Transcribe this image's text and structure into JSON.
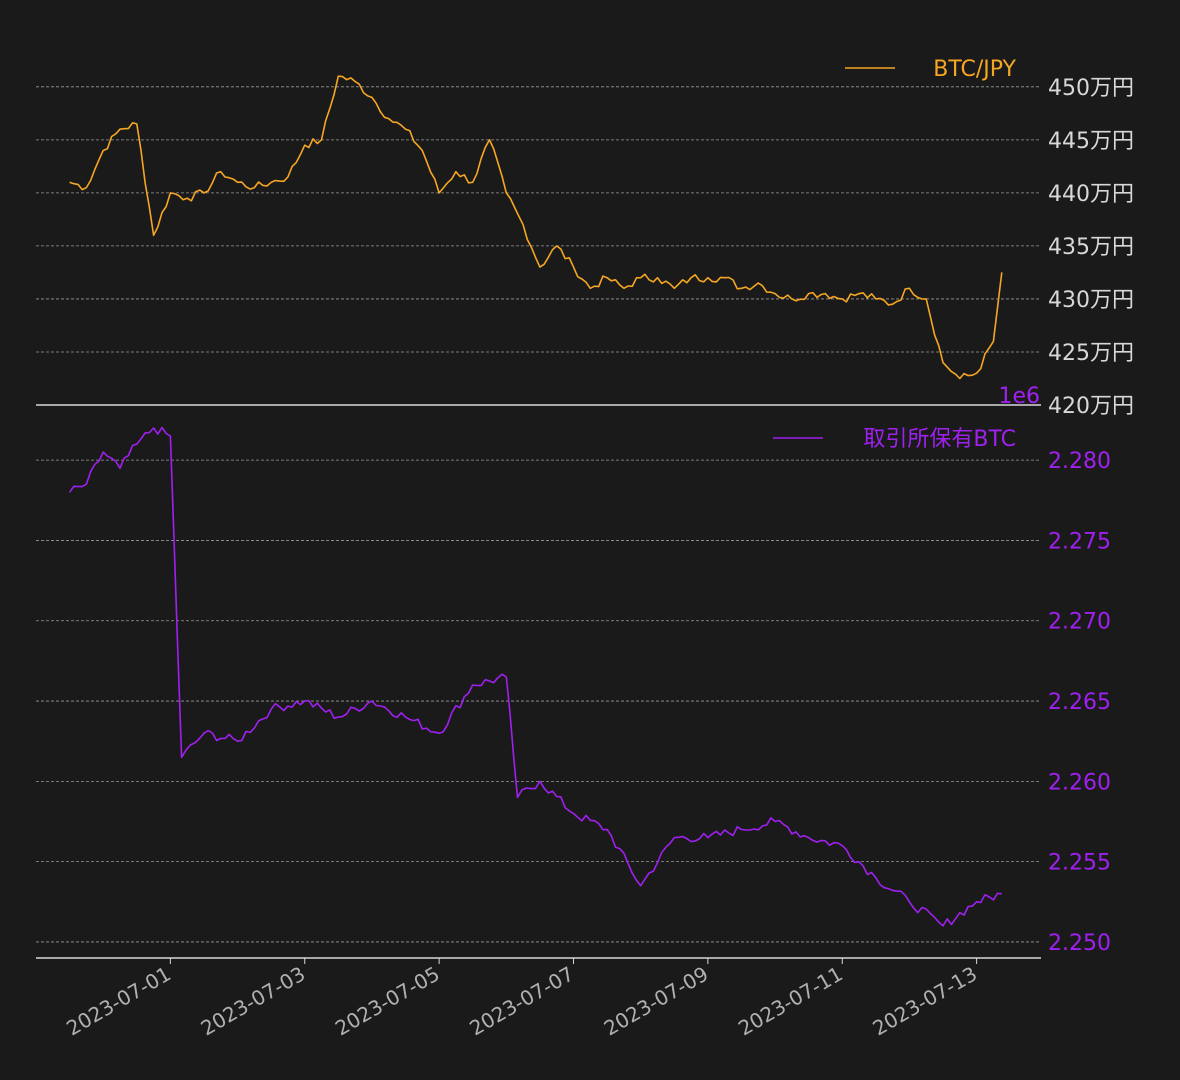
{
  "chart_data": [
    {
      "type": "line",
      "title": "",
      "xlabel": "",
      "ylabel": "",
      "color": "#f5a623",
      "legend": {
        "label": "BTC/JPY",
        "placement": "top-right"
      },
      "offset_text": "1e6",
      "ylim": [
        4200000,
        4530000
      ],
      "yticks": [
        {
          "value": 4200000,
          "label": "420万円"
        },
        {
          "value": 4250000,
          "label": "425万円"
        },
        {
          "value": 4300000,
          "label": "430万円"
        },
        {
          "value": 4350000,
          "label": "435万円"
        },
        {
          "value": 4400000,
          "label": "440万円"
        },
        {
          "value": 4450000,
          "label": "445万円"
        },
        {
          "value": 4500000,
          "label": "450万円"
        }
      ],
      "grid": true,
      "series": [
        {
          "name": "BTC/JPY",
          "x": [
            "2023-06-29T12:00",
            "2023-06-29T18:00",
            "2023-06-30T00:00",
            "2023-06-30T06:00",
            "2023-06-30T12:00",
            "2023-06-30T18:00",
            "2023-07-01T00:00",
            "2023-07-01T06:00",
            "2023-07-01T12:00",
            "2023-07-01T18:00",
            "2023-07-02T00:00",
            "2023-07-02T06:00",
            "2023-07-02T12:00",
            "2023-07-02T18:00",
            "2023-07-03T00:00",
            "2023-07-03T06:00",
            "2023-07-03T12:00",
            "2023-07-03T18:00",
            "2023-07-04T00:00",
            "2023-07-04T06:00",
            "2023-07-04T12:00",
            "2023-07-04T18:00",
            "2023-07-05T00:00",
            "2023-07-05T06:00",
            "2023-07-05T12:00",
            "2023-07-05T18:00",
            "2023-07-06T00:00",
            "2023-07-06T06:00",
            "2023-07-06T12:00",
            "2023-07-06T18:00",
            "2023-07-07T00:00",
            "2023-07-07T06:00",
            "2023-07-07T12:00",
            "2023-07-07T18:00",
            "2023-07-08T00:00",
            "2023-07-08T06:00",
            "2023-07-08T12:00",
            "2023-07-08T18:00",
            "2023-07-09T00:00",
            "2023-07-09T06:00",
            "2023-07-09T12:00",
            "2023-07-09T18:00",
            "2023-07-10T00:00",
            "2023-07-10T06:00",
            "2023-07-10T12:00",
            "2023-07-10T18:00",
            "2023-07-11T00:00",
            "2023-07-11T06:00",
            "2023-07-11T12:00",
            "2023-07-11T18:00",
            "2023-07-12T00:00",
            "2023-07-12T06:00",
            "2023-07-12T12:00",
            "2023-07-12T18:00",
            "2023-07-13T00:00",
            "2023-07-13T06:00",
            "2023-07-13T09:00"
          ],
          "values": [
            4410000,
            4405000,
            4440000,
            4460000,
            4465000,
            4360000,
            4400000,
            4395000,
            4400000,
            4420000,
            4410000,
            4405000,
            4410000,
            4415000,
            4445000,
            4450000,
            4510000,
            4505000,
            4490000,
            4470000,
            4460000,
            4440000,
            4400000,
            4420000,
            4410000,
            4450000,
            4400000,
            4370000,
            4330000,
            4350000,
            4330000,
            4310000,
            4320000,
            4310000,
            4320000,
            4320000,
            4310000,
            4320000,
            4320000,
            4320000,
            4310000,
            4315000,
            4305000,
            4300000,
            4305000,
            4305000,
            4300000,
            4305000,
            4300000,
            4295000,
            4310000,
            4300000,
            4240000,
            4225000,
            4230000,
            4260000,
            4325000
          ]
        }
      ]
    },
    {
      "type": "line",
      "title": "",
      "xlabel": "",
      "ylabel": "",
      "color": "#a020f0",
      "legend": {
        "label": "取引所保有BTC",
        "placement": "top-right"
      },
      "ylim": [
        2.249,
        2.2825
      ],
      "yticks": [
        {
          "value": 2.25,
          "label": "2.250"
        },
        {
          "value": 2.255,
          "label": "2.255"
        },
        {
          "value": 2.26,
          "label": "2.260"
        },
        {
          "value": 2.265,
          "label": "2.265"
        },
        {
          "value": 2.27,
          "label": "2.270"
        },
        {
          "value": 2.275,
          "label": "2.275"
        },
        {
          "value": 2.28,
          "label": "2.280"
        }
      ],
      "grid": true,
      "series": [
        {
          "name": "取引所保有BTC",
          "x": [
            "2023-06-29T12:00",
            "2023-06-29T18:00",
            "2023-06-30T00:00",
            "2023-06-30T06:00",
            "2023-06-30T12:00",
            "2023-06-30T18:00",
            "2023-07-01T00:00",
            "2023-07-01T04:00",
            "2023-07-01T12:00",
            "2023-07-02T00:00",
            "2023-07-02T12:00",
            "2023-07-03T00:00",
            "2023-07-03T12:00",
            "2023-07-04T00:00",
            "2023-07-04T12:00",
            "2023-07-05T00:00",
            "2023-07-05T12:00",
            "2023-07-06T00:00",
            "2023-07-06T04:00",
            "2023-07-06T12:00",
            "2023-07-07T00:00",
            "2023-07-07T12:00",
            "2023-07-08T00:00",
            "2023-07-08T12:00",
            "2023-07-09T00:00",
            "2023-07-09T12:00",
            "2023-07-10T00:00",
            "2023-07-10T12:00",
            "2023-07-11T00:00",
            "2023-07-11T12:00",
            "2023-07-12T00:00",
            "2023-07-12T12:00",
            "2023-07-13T00:00",
            "2023-07-13T09:00"
          ],
          "values": [
            2.278,
            2.2785,
            2.2805,
            2.2795,
            2.281,
            2.282,
            2.2815,
            2.2615,
            2.263,
            2.2625,
            2.2645,
            2.265,
            2.264,
            2.265,
            2.264,
            2.263,
            2.266,
            2.2665,
            2.259,
            2.26,
            2.258,
            2.257,
            2.2535,
            2.2565,
            2.2565,
            2.257,
            2.2575,
            2.2565,
            2.256,
            2.254,
            2.2525,
            2.251,
            2.2525,
            2.253
          ]
        }
      ]
    }
  ],
  "x_axis": {
    "range": [
      "2023-06-29T00:00",
      "2023-07-13T23:00"
    ],
    "ticks": [
      {
        "value": "2023-07-01",
        "label": "2023-07-01"
      },
      {
        "value": "2023-07-03",
        "label": "2023-07-03"
      },
      {
        "value": "2023-07-05",
        "label": "2023-07-05"
      },
      {
        "value": "2023-07-07",
        "label": "2023-07-07"
      },
      {
        "value": "2023-07-09",
        "label": "2023-07-09"
      },
      {
        "value": "2023-07-11",
        "label": "2023-07-11"
      },
      {
        "value": "2023-07-13",
        "label": "2023-07-13"
      }
    ]
  }
}
